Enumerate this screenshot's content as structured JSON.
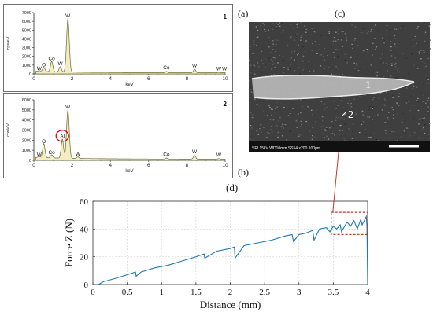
{
  "panel_labels": {
    "a": "(a)",
    "b": "(b)",
    "c": "(c)",
    "d": "(d)"
  },
  "chart_data": [
    {
      "panel": "(a)",
      "type": "line",
      "spectrum_number": "1",
      "ylabel": "cps/eV",
      "xlabel": "keV",
      "xlim": [
        0,
        10
      ],
      "ylim": [
        0,
        7000
      ],
      "x_ticks": [
        "0",
        "2",
        "4",
        "6",
        "8",
        "10"
      ],
      "y_ticks": [
        "0",
        "1000",
        "2000",
        "3000",
        "4000",
        "5000",
        "6000",
        "7000"
      ],
      "peaks": [
        {
          "x": 0.28,
          "y": 200,
          "label": "W"
        },
        {
          "x": 0.52,
          "y": 600,
          "label": "O"
        },
        {
          "x": 0.93,
          "y": 1300,
          "label": "Co"
        },
        {
          "x": 1.38,
          "y": 700,
          "label": "W"
        },
        {
          "x": 1.78,
          "y": 6200,
          "label": "W"
        },
        {
          "x": 6.93,
          "y": 250,
          "label": "Co"
        },
        {
          "x": 8.4,
          "y": 500,
          "label": "W"
        },
        {
          "x": 9.67,
          "y": 150,
          "label": "W"
        },
        {
          "x": 9.96,
          "y": 120,
          "label": "W"
        }
      ]
    },
    {
      "panel": "(b)",
      "type": "line",
      "spectrum_number": "2",
      "ylabel": "cps/eV",
      "xlabel": "keV",
      "xlim": [
        0,
        10
      ],
      "ylim": [
        0,
        6000
      ],
      "x_ticks": [
        "0",
        "2",
        "4",
        "6",
        "8",
        "10"
      ],
      "y_ticks": [
        "0",
        "1000",
        "2000",
        "3000",
        "4000",
        "5000",
        "6000"
      ],
      "peaks": [
        {
          "x": 0.28,
          "y": 200,
          "label": "W"
        },
        {
          "x": 0.52,
          "y": 1500,
          "label": "O"
        },
        {
          "x": 0.93,
          "y": 400,
          "label": "Co"
        },
        {
          "x": 1.49,
          "y": 2000,
          "label": "Al"
        },
        {
          "x": 1.78,
          "y": 4900,
          "label": "W"
        },
        {
          "x": 2.3,
          "y": 250,
          "label": "W"
        },
        {
          "x": 6.93,
          "y": 200,
          "label": "Co"
        },
        {
          "x": 8.4,
          "y": 450,
          "label": "W"
        },
        {
          "x": 9.67,
          "y": 150,
          "label": "W"
        }
      ],
      "highlight": "Al"
    },
    {
      "panel": "(d)",
      "type": "line",
      "xlabel": "Distance (mm)",
      "ylabel": "Force Z (N)",
      "xlim": [
        0,
        4
      ],
      "ylim": [
        0,
        60
      ],
      "x_ticks": [
        "0",
        "0.5",
        "1",
        "1.5",
        "2",
        "2.5",
        "3",
        "3.5",
        "4"
      ],
      "y_ticks": [
        "0",
        "20",
        "40",
        "60"
      ],
      "grid": true,
      "line_color": "#1f77b4",
      "highlight_box": {
        "x_range": [
          3.47,
          4.0
        ],
        "y_range": [
          36,
          52
        ],
        "color": "#c0392b"
      },
      "series": [
        {
          "x": [
            0.08,
            0.15,
            0.3,
            0.5,
            0.62,
            0.63,
            0.7,
            0.9,
            1.1,
            1.3,
            1.5,
            1.62,
            1.63,
            1.8,
            2.0,
            2.06,
            2.07,
            2.2,
            2.4,
            2.6,
            2.8,
            2.9,
            2.92,
            3.0,
            3.1,
            3.2,
            3.22,
            3.3,
            3.4,
            3.45,
            3.5,
            3.55,
            3.6,
            3.62,
            3.7,
            3.75,
            3.8,
            3.85,
            3.9,
            3.92,
            3.98,
            3.99,
            4.0
          ],
          "values": [
            0,
            2,
            4,
            7,
            9,
            6,
            9,
            12,
            14,
            17,
            20,
            22,
            19,
            24,
            26,
            27,
            19,
            28,
            30,
            32,
            35,
            36,
            31,
            36,
            37,
            39,
            32,
            40,
            41,
            38,
            42,
            40,
            43,
            38,
            45,
            42,
            46,
            40,
            47,
            43,
            49,
            42,
            0
          ]
        }
      ]
    }
  ],
  "sem": {
    "region_labels": [
      "1",
      "2"
    ],
    "scale_text": "SEI  15kV  WD10mm  SS54   x200   100μm"
  }
}
